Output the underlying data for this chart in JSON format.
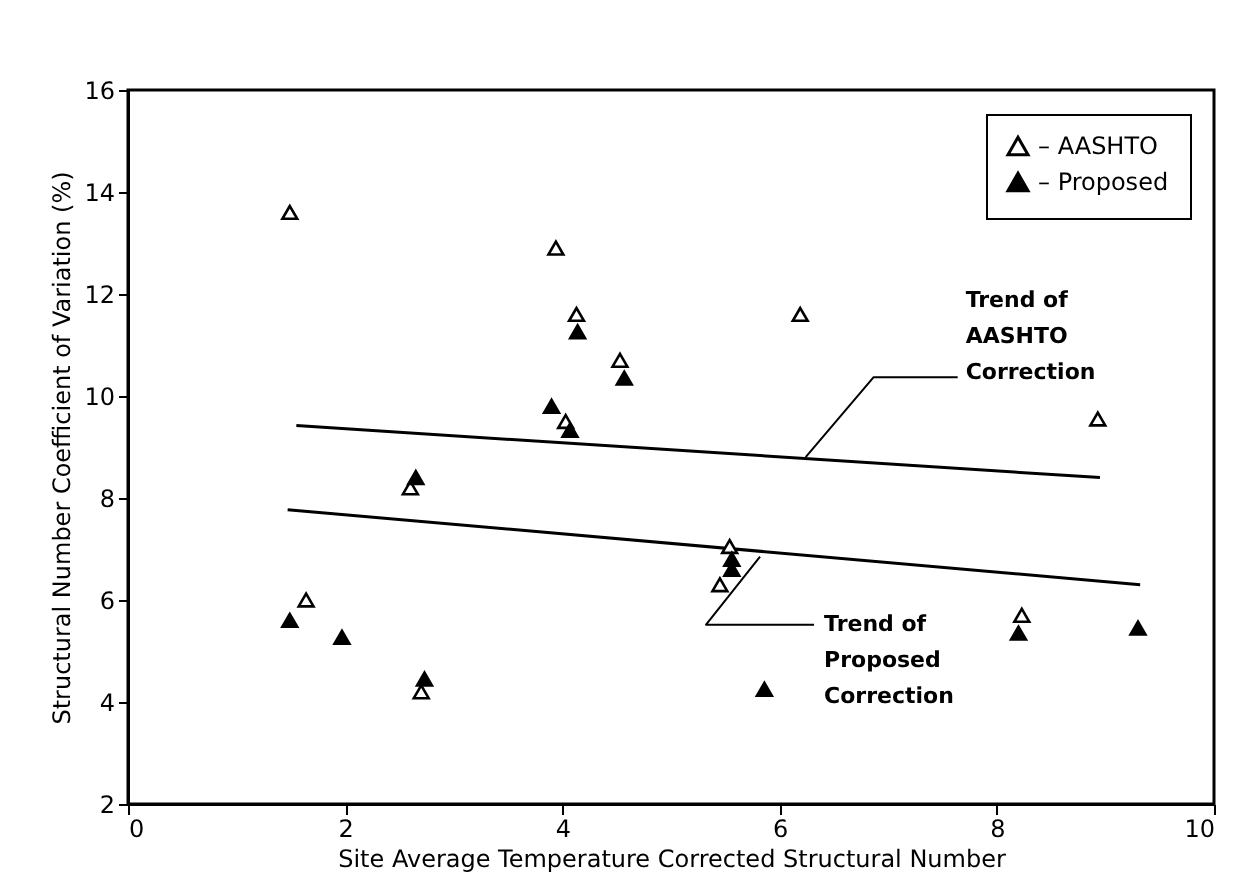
{
  "chart_data": {
    "type": "scatter",
    "xlabel": "Site Average Temperature Corrected Structural Number",
    "ylabel": "Structural Number Coefficient of Variation (%)",
    "xlim": [
      0,
      10
    ],
    "xticks": [
      0,
      2,
      4,
      6,
      8,
      10
    ],
    "ylim": [
      2,
      16
    ],
    "yticks": [
      2,
      4,
      6,
      8,
      10,
      12,
      14,
      16
    ],
    "grid": false,
    "legend": "top right",
    "marker": "triangle",
    "series": [
      {
        "name": "– AASHTO",
        "color": "#ffffff",
        "x": [
          1.49,
          1.64,
          2.6,
          2.7,
          3.94,
          4.03,
          4.13,
          4.53,
          5.45,
          5.54,
          6.19,
          8.23,
          8.93
        ],
        "values": [
          13.6,
          6.0,
          8.2,
          4.2,
          12.9,
          9.5,
          11.6,
          10.7,
          6.3,
          7.05,
          11.6,
          5.7,
          9.55
        ]
      },
      {
        "name": "– Proposed",
        "color": "#000000",
        "x": [
          1.49,
          1.97,
          2.65,
          2.73,
          3.9,
          4.07,
          4.14,
          4.57,
          5.56,
          5.56,
          5.86,
          8.2,
          9.3
        ],
        "values": [
          5.6,
          5.27,
          8.4,
          4.45,
          9.8,
          9.33,
          11.26,
          10.35,
          6.8,
          6.6,
          4.25,
          5.35,
          5.45
        ]
      },
      {
        "type": "line",
        "color": "#000000",
        "marker": "none",
        "line_style": "solid",
        "x": [
          1.55,
          8.95
        ],
        "values": [
          9.42,
          8.4
        ]
      },
      {
        "type": "line",
        "color": "#000000",
        "marker": "none",
        "line_style": "solid",
        "x": [
          1.47,
          9.32
        ],
        "values": [
          7.77,
          6.3
        ]
      }
    ],
    "annotations": [
      {
        "text": "Trend of\nAASHTO\nCorrection",
        "x": 6.24,
        "y": 8.8
      },
      {
        "text": "Trend of\nProposed\nCorrection",
        "x": 5.82,
        "y": 6.85
      }
    ]
  }
}
